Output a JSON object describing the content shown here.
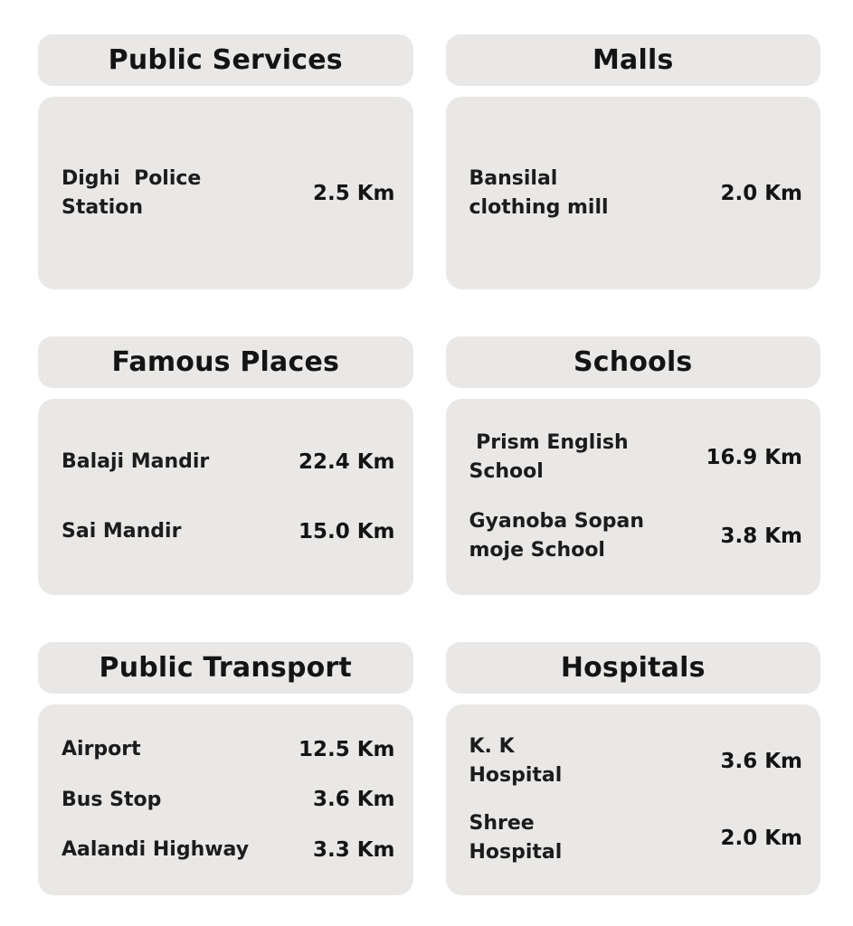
{
  "page": {
    "background_color": "#ffffff",
    "card_color": "#e9e8e6",
    "text_color": "#1a1a1a",
    "distance_unit": "Km"
  },
  "sections": [
    {
      "title": "Public Services",
      "items": [
        {
          "name": "Dighi  Police\nStation",
          "distance": "2.5 Km"
        }
      ]
    },
    {
      "title": "Malls",
      "items": [
        {
          "name": "Bansilal\nclothing mill",
          "distance": "2.0 Km"
        }
      ]
    },
    {
      "title": "Famous Places",
      "items": [
        {
          "name": "Balaji Mandir",
          "distance": "22.4 Km"
        },
        {
          "name": "Sai Mandir",
          "distance": "15.0 Km"
        }
      ]
    },
    {
      "title": "Schools",
      "items": [
        {
          "name": " Prism English\nSchool",
          "distance": "16.9 Km"
        },
        {
          "name": "Gyanoba Sopan\nmoje School",
          "distance": "3.8 Km"
        }
      ]
    },
    {
      "title": "Public Transport",
      "items": [
        {
          "name": "Airport",
          "distance": "12.5 Km"
        },
        {
          "name": "Bus Stop",
          "distance": "3.6 Km"
        },
        {
          "name": "Aalandi Highway",
          "distance": "3.3 Km"
        }
      ]
    },
    {
      "title": "Hospitals",
      "items": [
        {
          "name": "K. K\nHospital",
          "distance": "3.6 Km"
        },
        {
          "name": "Shree\nHospital",
          "distance": "2.0 Km"
        }
      ]
    }
  ]
}
